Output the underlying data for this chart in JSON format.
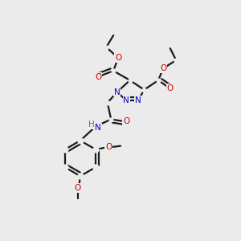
{
  "bg_color": "#ebebeb",
  "atom_color_N": "#0000cc",
  "atom_color_O": "#cc0000",
  "atom_color_H": "#2e8b8b",
  "bond_color": "#1a1a1a",
  "bond_width": 1.6,
  "figsize": [
    3.0,
    3.0
  ],
  "dpi": 100,
  "xlim": [
    0,
    10
  ],
  "ylim": [
    0,
    10
  ]
}
